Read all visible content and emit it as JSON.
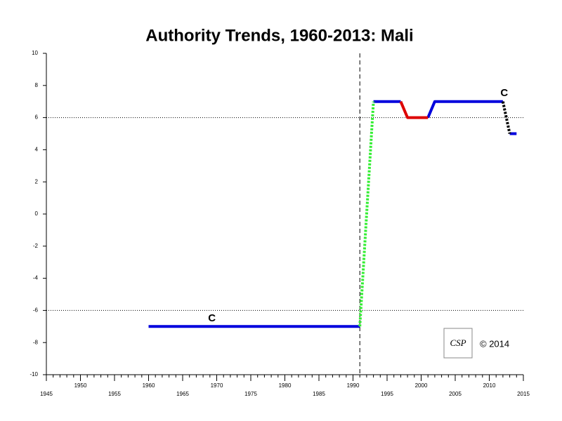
{
  "chart_data": {
    "type": "line",
    "title": "Authority Trends, 1960-2013: Mali",
    "xlim": [
      1945,
      2015
    ],
    "xticks": [
      1945,
      1950,
      1955,
      1960,
      1965,
      1970,
      1975,
      1980,
      1985,
      1990,
      1995,
      2000,
      2005,
      2010,
      2015
    ],
    "xminor_step": 1,
    "ylim": [
      -10,
      10
    ],
    "yticks": [
      -10,
      -8,
      -6,
      -4,
      -2,
      0,
      2,
      4,
      6,
      8,
      10
    ],
    "hlines": [
      6,
      -6
    ],
    "vlines": [
      1991
    ],
    "series": [
      {
        "color": "#0000dd",
        "style": "solid",
        "x": [
          1960,
          1991,
          1992,
          1993,
          1997,
          1999,
          2001,
          2002,
          2012,
          2012.5,
          2013,
          2014
        ],
        "values": [
          -7,
          -7,
          null,
          7,
          7,
          null,
          6,
          7,
          7,
          null,
          5,
          5
        ]
      },
      {
        "color": "#dd0000",
        "style": "solid",
        "x": [
          1997,
          1998,
          2001
        ],
        "values": [
          7,
          6,
          6
        ]
      },
      {
        "color": "#33ee33",
        "style": "dotted",
        "x": [
          1991,
          1993
        ],
        "values": [
          -7,
          7
        ]
      },
      {
        "color": "#000000",
        "style": "dotted",
        "x": [
          2012,
          2013
        ],
        "values": [
          7,
          5
        ]
      }
    ],
    "annotations": [
      {
        "text": "C",
        "x": 1969.3,
        "y": -6.5
      },
      {
        "text": "C",
        "x": 2012.2,
        "y": 7.5
      }
    ],
    "logo": "CSP",
    "copyright": "© 2014"
  }
}
